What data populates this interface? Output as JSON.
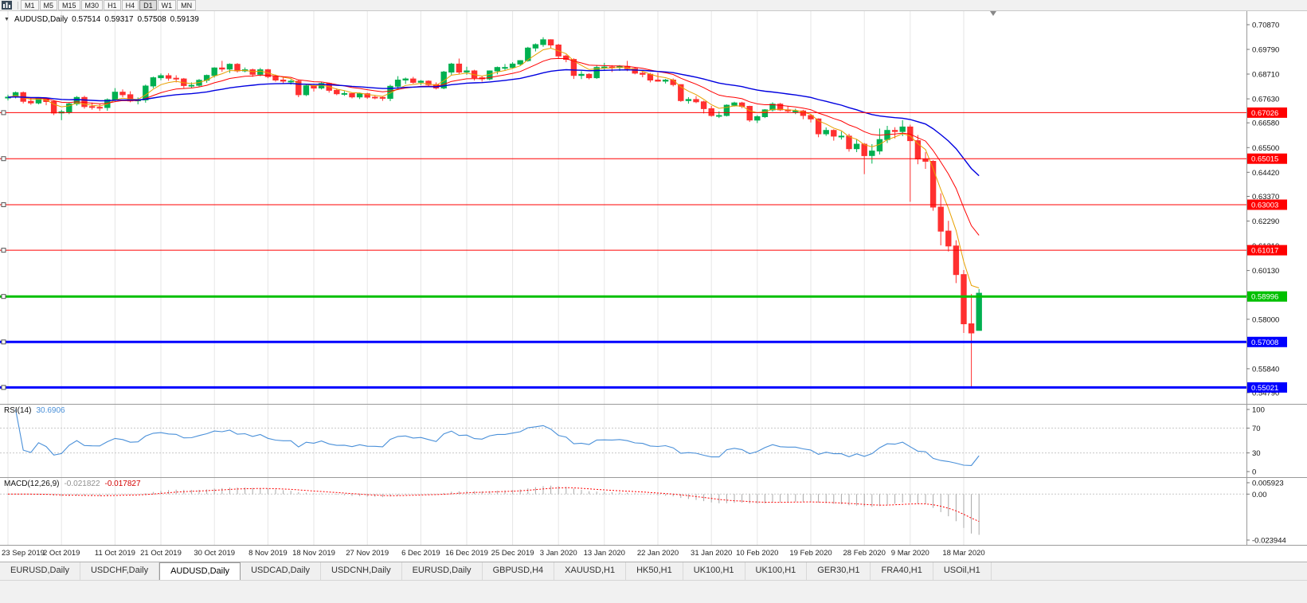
{
  "toolbar": {
    "timeframes": [
      "M1",
      "M5",
      "M15",
      "M30",
      "H1",
      "H4",
      "D1",
      "W1",
      "MN"
    ],
    "active_timeframe": "D1"
  },
  "chart_header": {
    "symbol": "AUDUSD,Daily",
    "open": "0.57514",
    "high": "0.59317",
    "low": "0.57508",
    "close": "0.59139"
  },
  "tabs": {
    "active_index": 2,
    "items": [
      "EURUSD,Daily",
      "USDCHF,Daily",
      "AUDUSD,Daily",
      "USDCAD,Daily",
      "USDCNH,Daily",
      "EURUSD,Daily",
      "GBPUSD,H4",
      "XAUUSD,H1",
      "HK50,H1",
      "UK100,H1",
      "UK100,H1",
      "GER30,H1",
      "FRA40,H1",
      "USOil,H1"
    ]
  },
  "chart_data": {
    "type": "candlestick",
    "symbol": "AUDUSD",
    "timeframe": "Daily",
    "current_bar": {
      "open": 0.57514,
      "high": 0.59317,
      "low": 0.57508,
      "close": 0.59139
    },
    "colors": {
      "bull": "#00B050",
      "bear": "#FF3030",
      "grid": "#E6E6E6",
      "axis_text": "#111111"
    },
    "price_axis": [
      "0.70870",
      "0.69790",
      "0.68710",
      "0.67630",
      "0.66580",
      "0.65500",
      "0.64420",
      "0.63370",
      "0.62290",
      "0.61210",
      "0.60130",
      "0.59050",
      "0.58000",
      "0.56950",
      "0.55840",
      "0.54790"
    ],
    "time_axis": [
      {
        "label": "23 Sep 2019",
        "i": 0
      },
      {
        "label": "2 Oct 2019",
        "i": 7
      },
      {
        "label": "11 Oct 2019",
        "i": 14
      },
      {
        "label": "21 Oct 2019",
        "i": 20
      },
      {
        "label": "30 Oct 2019",
        "i": 27
      },
      {
        "label": "8 Nov 2019",
        "i": 34
      },
      {
        "label": "18 Nov 2019",
        "i": 40
      },
      {
        "label": "27 Nov 2019",
        "i": 47
      },
      {
        "label": "6 Dec 2019",
        "i": 54
      },
      {
        "label": "16 Dec 2019",
        "i": 60
      },
      {
        "label": "25 Dec 2019",
        "i": 66
      },
      {
        "label": "3 Jan 2020",
        "i": 72
      },
      {
        "label": "13 Jan 2020",
        "i": 78
      },
      {
        "label": "22 Jan 2020",
        "i": 85
      },
      {
        "label": "31 Jan 2020",
        "i": 92
      },
      {
        "label": "10 Feb 2020",
        "i": 98
      },
      {
        "label": "19 Feb 2020",
        "i": 105
      },
      {
        "label": "28 Feb 2020",
        "i": 112
      },
      {
        "label": "9 Mar 2020",
        "i": 118
      },
      {
        "label": "18 Mar 2020",
        "i": 125
      }
    ],
    "horizontal_lines": [
      {
        "price": 0.67026,
        "label": "0.67026",
        "color": "#FF0000",
        "width": 1
      },
      {
        "price": 0.65015,
        "label": "0.65015",
        "color": "#FF0000",
        "width": 1
      },
      {
        "price": 0.63003,
        "label": "0.63003",
        "color": "#FF0000",
        "width": 1
      },
      {
        "price": 0.61017,
        "label": "0.61017",
        "color": "#FF0000",
        "width": 1
      },
      {
        "price": 0.58996,
        "label": "0.58996",
        "color": "#00C000",
        "width": 3
      },
      {
        "price": 0.57008,
        "label": "0.57008",
        "color": "#0000FF",
        "width": 3
      },
      {
        "price": 0.55021,
        "label": "0.55021",
        "color": "#0000FF",
        "width": 3
      }
    ],
    "moving_averages": [
      {
        "period": 5,
        "color": "#E8A000",
        "width": 1
      },
      {
        "period": 13,
        "color": "#FF0000",
        "width": 1
      },
      {
        "period": 34,
        "color": "#0000E0",
        "width": 1.4
      }
    ],
    "rsi": {
      "label": "RSI(14)",
      "value": "30.6906",
      "period": 14,
      "axis": [
        "100",
        "70",
        "30",
        "0"
      ],
      "levels": [
        70,
        30
      ],
      "color": "#4A90D9"
    },
    "macd": {
      "label": "MACD(12,26,9)",
      "value_macd": "-0.021822",
      "value_signal": "-0.017827",
      "fast": 12,
      "slow": 26,
      "signal": 9,
      "axis": [
        "0.005923",
        "0.00",
        "-0.023944"
      ],
      "histogram_color": "#A8A8A8",
      "signal_color": "#FF0000"
    },
    "candles": [
      [
        0.6768,
        0.6781,
        0.6756,
        0.677
      ],
      [
        0.677,
        0.6795,
        0.6765,
        0.679
      ],
      [
        0.679,
        0.6795,
        0.6743,
        0.6752
      ],
      [
        0.6752,
        0.6766,
        0.6737,
        0.6745
      ],
      [
        0.6745,
        0.6769,
        0.6739,
        0.6764
      ],
      [
        0.6764,
        0.6766,
        0.6735,
        0.6751
      ],
      [
        0.6751,
        0.6757,
        0.6692,
        0.6701
      ],
      [
        0.6701,
        0.6715,
        0.667,
        0.6706
      ],
      [
        0.6706,
        0.6748,
        0.6696,
        0.6741
      ],
      [
        0.6741,
        0.6775,
        0.6733,
        0.6769
      ],
      [
        0.6769,
        0.6776,
        0.672,
        0.6729
      ],
      [
        0.6729,
        0.6747,
        0.6716,
        0.6726
      ],
      [
        0.6726,
        0.674,
        0.671,
        0.6725
      ],
      [
        0.6725,
        0.6765,
        0.6711,
        0.6759
      ],
      [
        0.6759,
        0.681,
        0.6752,
        0.6792
      ],
      [
        0.6792,
        0.6804,
        0.677,
        0.6781
      ],
      [
        0.6781,
        0.6796,
        0.6748,
        0.6754
      ],
      [
        0.6754,
        0.6769,
        0.6739,
        0.6758
      ],
      [
        0.6758,
        0.6825,
        0.6746,
        0.6819
      ],
      [
        0.6819,
        0.686,
        0.6809,
        0.6855
      ],
      [
        0.6855,
        0.6874,
        0.6844,
        0.6864
      ],
      [
        0.6864,
        0.6875,
        0.6842,
        0.6853
      ],
      [
        0.6853,
        0.6866,
        0.6835,
        0.685
      ],
      [
        0.685,
        0.6854,
        0.681,
        0.6821
      ],
      [
        0.6821,
        0.6835,
        0.6809,
        0.6822
      ],
      [
        0.6822,
        0.6849,
        0.6815,
        0.6844
      ],
      [
        0.6844,
        0.6869,
        0.6833,
        0.6865
      ],
      [
        0.6865,
        0.6901,
        0.6856,
        0.6898
      ],
      [
        0.6898,
        0.6929,
        0.6881,
        0.6893
      ],
      [
        0.6893,
        0.6918,
        0.6876,
        0.6914
      ],
      [
        0.6914,
        0.6919,
        0.6878,
        0.6885
      ],
      [
        0.6885,
        0.69,
        0.6879,
        0.689
      ],
      [
        0.689,
        0.6895,
        0.6859,
        0.687
      ],
      [
        0.687,
        0.6898,
        0.6862,
        0.689
      ],
      [
        0.689,
        0.6894,
        0.6853,
        0.686
      ],
      [
        0.686,
        0.6869,
        0.6838,
        0.6845
      ],
      [
        0.6845,
        0.6856,
        0.6831,
        0.684
      ],
      [
        0.684,
        0.6848,
        0.6825,
        0.684
      ],
      [
        0.684,
        0.6847,
        0.677,
        0.6781
      ],
      [
        0.6781,
        0.6824,
        0.6775,
        0.682
      ],
      [
        0.682,
        0.6828,
        0.6795,
        0.681
      ],
      [
        0.681,
        0.6836,
        0.6804,
        0.683
      ],
      [
        0.683,
        0.6834,
        0.679,
        0.68
      ],
      [
        0.68,
        0.6808,
        0.6779,
        0.6785
      ],
      [
        0.6785,
        0.6797,
        0.6776,
        0.6786
      ],
      [
        0.6786,
        0.679,
        0.6765,
        0.6771
      ],
      [
        0.6771,
        0.679,
        0.6762,
        0.6785
      ],
      [
        0.6785,
        0.6789,
        0.6763,
        0.677
      ],
      [
        0.677,
        0.6779,
        0.6761,
        0.6769
      ],
      [
        0.6769,
        0.6774,
        0.6754,
        0.6765
      ],
      [
        0.6765,
        0.6825,
        0.6753,
        0.6818
      ],
      [
        0.6818,
        0.6862,
        0.681,
        0.6845
      ],
      [
        0.6845,
        0.6856,
        0.6828,
        0.685
      ],
      [
        0.685,
        0.6859,
        0.6829,
        0.6835
      ],
      [
        0.6835,
        0.6845,
        0.6823,
        0.684
      ],
      [
        0.684,
        0.6844,
        0.6817,
        0.6825
      ],
      [
        0.6825,
        0.6835,
        0.6804,
        0.681
      ],
      [
        0.681,
        0.6885,
        0.6805,
        0.688
      ],
      [
        0.688,
        0.692,
        0.6866,
        0.6915
      ],
      [
        0.6915,
        0.6939,
        0.687,
        0.688
      ],
      [
        0.688,
        0.6903,
        0.6868,
        0.6885
      ],
      [
        0.6885,
        0.689,
        0.6843,
        0.6855
      ],
      [
        0.6855,
        0.6862,
        0.6838,
        0.685
      ],
      [
        0.685,
        0.6887,
        0.6844,
        0.6885
      ],
      [
        0.6885,
        0.6904,
        0.687,
        0.69
      ],
      [
        0.69,
        0.6915,
        0.6889,
        0.69
      ],
      [
        0.69,
        0.6923,
        0.6895,
        0.6915
      ],
      [
        0.6915,
        0.6932,
        0.6908,
        0.693
      ],
      [
        0.693,
        0.699,
        0.6925,
        0.6985
      ],
      [
        0.6985,
        0.7005,
        0.697,
        0.7
      ],
      [
        0.7,
        0.7032,
        0.699,
        0.7021
      ],
      [
        0.7021,
        0.7023,
        0.6985,
        0.6998
      ],
      [
        0.6998,
        0.7003,
        0.6938,
        0.695
      ],
      [
        0.695,
        0.6956,
        0.6923,
        0.6935
      ],
      [
        0.6935,
        0.694,
        0.685,
        0.6865
      ],
      [
        0.6865,
        0.6884,
        0.6849,
        0.687
      ],
      [
        0.687,
        0.6875,
        0.6848,
        0.6855
      ],
      [
        0.6855,
        0.6911,
        0.685,
        0.69
      ],
      [
        0.69,
        0.692,
        0.6887,
        0.6902
      ],
      [
        0.6902,
        0.691,
        0.688,
        0.69
      ],
      [
        0.69,
        0.691,
        0.6885,
        0.6905
      ],
      [
        0.6905,
        0.6929,
        0.6884,
        0.6895
      ],
      [
        0.6895,
        0.69,
        0.687,
        0.6875
      ],
      [
        0.6875,
        0.6884,
        0.6857,
        0.687
      ],
      [
        0.687,
        0.6876,
        0.6835,
        0.6845
      ],
      [
        0.6845,
        0.6877,
        0.6838,
        0.684
      ],
      [
        0.684,
        0.685,
        0.683,
        0.6845
      ],
      [
        0.6845,
        0.6852,
        0.6817,
        0.6825
      ],
      [
        0.6825,
        0.6826,
        0.675,
        0.6755
      ],
      [
        0.6755,
        0.677,
        0.6742,
        0.676
      ],
      [
        0.676,
        0.6775,
        0.6744,
        0.675
      ],
      [
        0.675,
        0.6755,
        0.6699,
        0.672
      ],
      [
        0.672,
        0.6732,
        0.6685,
        0.669
      ],
      [
        0.669,
        0.6708,
        0.6679,
        0.669
      ],
      [
        0.669,
        0.6739,
        0.6686,
        0.6735
      ],
      [
        0.6735,
        0.675,
        0.6729,
        0.6745
      ],
      [
        0.6745,
        0.675,
        0.6722,
        0.673
      ],
      [
        0.673,
        0.6733,
        0.6662,
        0.667
      ],
      [
        0.667,
        0.6692,
        0.6657,
        0.6685
      ],
      [
        0.6685,
        0.6718,
        0.6679,
        0.6715
      ],
      [
        0.6715,
        0.6748,
        0.6708,
        0.674
      ],
      [
        0.674,
        0.6745,
        0.671,
        0.6715
      ],
      [
        0.6715,
        0.673,
        0.6704,
        0.671
      ],
      [
        0.671,
        0.672,
        0.6696,
        0.671
      ],
      [
        0.671,
        0.6715,
        0.6674,
        0.669
      ],
      [
        0.669,
        0.6696,
        0.666,
        0.6675
      ],
      [
        0.6675,
        0.6678,
        0.6595,
        0.661
      ],
      [
        0.661,
        0.6638,
        0.6601,
        0.6625
      ],
      [
        0.6625,
        0.663,
        0.658,
        0.66
      ],
      [
        0.66,
        0.662,
        0.6585,
        0.66
      ],
      [
        0.66,
        0.661,
        0.6532,
        0.6545
      ],
      [
        0.6545,
        0.6585,
        0.653,
        0.6565
      ],
      [
        0.6565,
        0.657,
        0.6434,
        0.6515
      ],
      [
        0.6515,
        0.6565,
        0.648,
        0.6535
      ],
      [
        0.6535,
        0.6633,
        0.652,
        0.6585
      ],
      [
        0.6585,
        0.6645,
        0.657,
        0.6625
      ],
      [
        0.6625,
        0.6639,
        0.659,
        0.662
      ],
      [
        0.662,
        0.667,
        0.66,
        0.664
      ],
      [
        0.664,
        0.665,
        0.6313,
        0.658
      ],
      [
        0.658,
        0.6605,
        0.6477,
        0.65
      ],
      [
        0.65,
        0.653,
        0.6457,
        0.649
      ],
      [
        0.649,
        0.6495,
        0.6274,
        0.629
      ],
      [
        0.629,
        0.635,
        0.6123,
        0.6185
      ],
      [
        0.6185,
        0.623,
        0.6096,
        0.612
      ],
      [
        0.612,
        0.6145,
        0.5958,
        0.5995
      ],
      [
        0.5995,
        0.6015,
        0.574,
        0.578
      ],
      [
        0.578,
        0.591,
        0.5498,
        0.574
      ],
      [
        0.57514,
        0.59317,
        0.57508,
        0.59139
      ]
    ]
  }
}
